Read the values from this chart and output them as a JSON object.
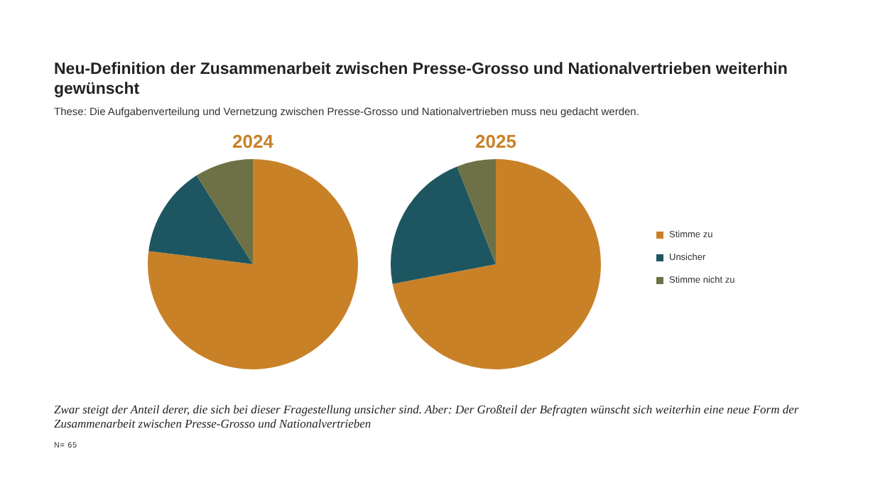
{
  "chart_data": [
    {
      "type": "other",
      "title": "Neu-Definition der Zusammenarbeit zwischen Presse-Grosso und Nationalvertrieben weiterhin gewünscht",
      "subtitle": "These: Die Aufgabenverteilung und Vernetzung zwischen Presse-Grosso  und Nationalvertrieben muss neu gedacht werden.",
      "annotations": [
        "Zwar steigt der Anteil derer, die sich bei dieser Fragestellung unsicher sind. Aber: Der Großteil der Befragten wünscht sich weiterhin eine neue Form der Zusammenarbeit zwischen Presse-Grosso und Nationalvertrieben",
        "N= 65"
      ]
    },
    {
      "type": "pie",
      "title": "2024",
      "categories": [
        null,
        null,
        null
      ],
      "values": [
        77,
        14,
        9
      ],
      "colors": [
        "#c98128",
        "#1d5660",
        "#6d7145"
      ]
    },
    {
      "type": "pie",
      "title": "2025",
      "categories": [
        "Stimme zu",
        "Unsicher",
        "Stimme nicht zu"
      ],
      "values": [
        72,
        22,
        6
      ],
      "colors": [
        "#c98128",
        "#1d5660",
        "#6d7145"
      ],
      "legend": "right"
    }
  ]
}
